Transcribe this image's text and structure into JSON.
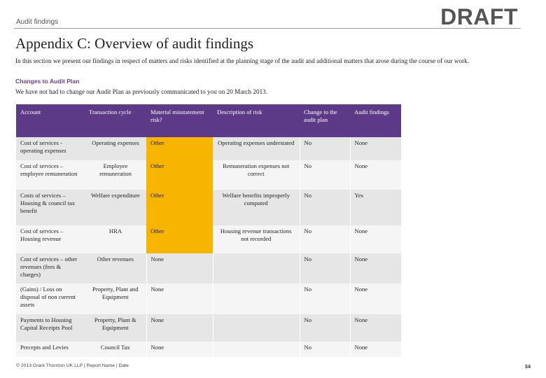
{
  "header": {
    "label": "Audit findings",
    "watermark": "DRAFT"
  },
  "title": "Appendix C: Overview of audit findings",
  "intro": "In this section we present our findings in respect of matters and risks identified at the planning stage of the audit and additional matters that arose during the course of our work.",
  "subheading": "Changes to Audit Plan",
  "note": "We have not had to change our Audit Plan as previously communicated to you on 20 March 2013.",
  "table": {
    "columns": [
      "Account",
      "Transaction cycle",
      "Material misstatement risk?",
      "Description of risk",
      "Change to the audit plan",
      "Audit findings"
    ],
    "rows": [
      {
        "account": "Cost of services - operating expenses",
        "cycle": "Operating expenses",
        "risk": "Other",
        "description": "Operating expenses understated",
        "change": "No",
        "findings": "None"
      },
      {
        "account": "Cost of services – employee remuneration",
        "cycle": "Employee remuneration",
        "risk": "Other",
        "description": "Remuneration expenses not correct",
        "change": "No",
        "findings": "None"
      },
      {
        "account": "Costs of services – Housing & council tax benefit",
        "cycle": "Welfare expenditure",
        "risk": "Other",
        "description": "Welfare benefits improperly computed",
        "change": "No",
        "findings": "Yes"
      },
      {
        "account": "Cost of services – Housing revenue",
        "cycle": "HRA",
        "risk": "Other",
        "description": "Housing revenue transactions not recorded",
        "change": "No",
        "findings": "None"
      },
      {
        "account": "Cost of services – other revenues (fees & charges)",
        "cycle": "Other revenues",
        "risk": "None",
        "description": "",
        "change": "No",
        "findings": "None"
      },
      {
        "account": "(Gains) / Loss on disposal of non current assets",
        "cycle": "Property, Plant and Equipment",
        "risk": "None",
        "description": "",
        "change": "No",
        "findings": "None"
      },
      {
        "account": "Payments to Housing Capital Receipts Pool",
        "cycle": "Property, Plant & Equipment",
        "risk": "None",
        "description": "",
        "change": "No",
        "findings": "None"
      },
      {
        "account": "Precepts and Levies",
        "cycle": "Council Tax",
        "risk": "None",
        "description": "",
        "change": "No",
        "findings": "None"
      }
    ]
  },
  "footer": {
    "text": "© 2013 Grant Thornton UK LLP | Report Name | Date",
    "page_number": "34"
  },
  "colors": {
    "header_bg": "#5c3a87",
    "risk_highlight": "#f7b400",
    "subheading": "#6a3d8e"
  }
}
